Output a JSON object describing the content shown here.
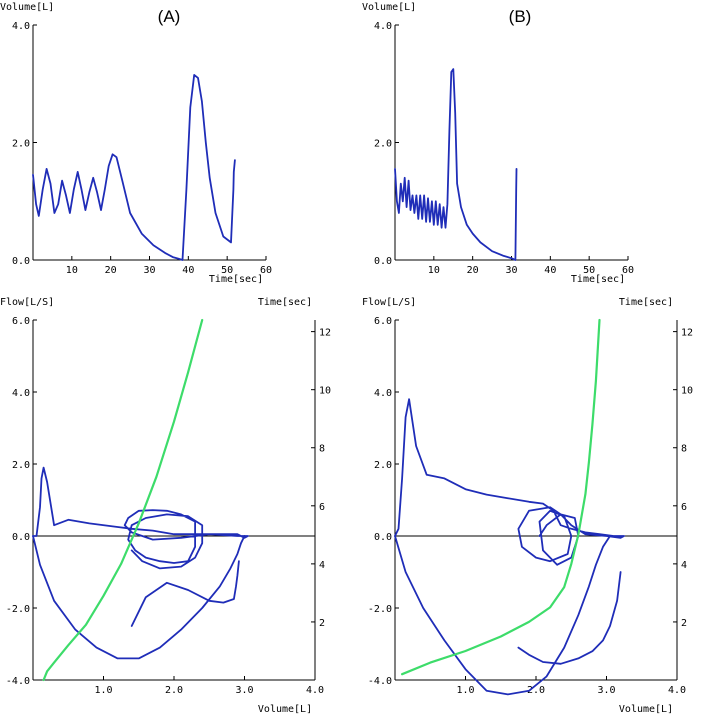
{
  "panel_labels": [
    "(A)",
    "(B)"
  ],
  "chart_data": [
    {
      "type": "line",
      "panel": "(A)",
      "xlabel": "Time[sec]",
      "ylabel": "Volume[L]",
      "xlim": [
        0,
        60
      ],
      "ylim": [
        0,
        4.0
      ],
      "xticks": [
        "10",
        "20",
        "30",
        "40",
        "50",
        "60"
      ],
      "yticks": [
        "0.0",
        "2.0",
        "4.0"
      ],
      "series": [
        {
          "color": "#1f2db8",
          "x": [
            0,
            0.8,
            1.5,
            2.5,
            3.5,
            4.5,
            5.5,
            6.5,
            7.5,
            8.5,
            9.5,
            10.5,
            11.5,
            12.5,
            13.5,
            14.5,
            15.5,
            16.5,
            17.5,
            18.5,
            19.5,
            20.5,
            21.5,
            23,
            25,
            28,
            31,
            34,
            36,
            37.5,
            38.5,
            39.5,
            40.5,
            41.5,
            42.5,
            43.5,
            44.5,
            45.5,
            47,
            49,
            51,
            51.6,
            51.7,
            52
          ],
          "y": [
            1.45,
            0.95,
            0.75,
            1.2,
            1.55,
            1.3,
            0.8,
            0.95,
            1.35,
            1.1,
            0.8,
            1.2,
            1.5,
            1.2,
            0.85,
            1.15,
            1.4,
            1.15,
            0.85,
            1.2,
            1.6,
            1.8,
            1.75,
            1.35,
            0.8,
            0.45,
            0.25,
            0.12,
            0.05,
            0.02,
            0.0,
            1.2,
            2.6,
            3.15,
            3.1,
            2.7,
            2.0,
            1.4,
            0.8,
            0.4,
            0.3,
            1.2,
            1.5,
            1.7
          ]
        }
      ]
    },
    {
      "type": "line",
      "panel": "(B)",
      "xlabel": "Time[sec]",
      "ylabel": "Volume[L]",
      "xlim": [
        0,
        60
      ],
      "ylim": [
        0,
        4.0
      ],
      "xticks": [
        "10",
        "20",
        "30",
        "40",
        "50",
        "60"
      ],
      "yticks": [
        "0.0",
        "2.0",
        "4.0"
      ],
      "series": [
        {
          "color": "#1f2db8",
          "x": [
            0,
            0.5,
            1,
            1.5,
            2,
            2.5,
            3,
            3.5,
            4,
            4.5,
            5,
            5.5,
            6,
            6.5,
            7,
            7.5,
            8,
            8.5,
            9,
            9.5,
            10,
            10.5,
            11,
            11.5,
            12,
            12.5,
            13,
            13.5,
            14,
            14.5,
            15,
            15.5,
            16,
            17,
            18.5,
            20,
            22,
            25,
            28,
            30,
            31,
            31.2,
            31.3
          ],
          "y": [
            1.55,
            1.0,
            0.8,
            1.3,
            1.0,
            1.4,
            0.9,
            1.35,
            0.85,
            1.1,
            0.8,
            1.1,
            0.7,
            1.1,
            0.7,
            1.1,
            0.65,
            1.05,
            0.65,
            1.0,
            0.6,
            1.0,
            0.6,
            0.95,
            0.55,
            0.9,
            0.55,
            0.95,
            2.2,
            3.2,
            3.25,
            2.5,
            1.3,
            0.9,
            0.6,
            0.45,
            0.3,
            0.15,
            0.07,
            0.03,
            0.0,
            1.2,
            1.55
          ]
        }
      ]
    },
    {
      "type": "line",
      "panel": "(A)",
      "xlabel": "Volume[L]",
      "ylabel": "Flow[L/S]",
      "y2label": "Time[sec]",
      "xlim": [
        0,
        4.0
      ],
      "ylim": [
        -4.0,
        6.0
      ],
      "y2lim": [
        0,
        12.4
      ],
      "xticks": [
        "1.0",
        "2.0",
        "3.0",
        "4.0"
      ],
      "yticks": [
        "-4.0",
        "-2.0",
        "0.0",
        "2.0",
        "4.0",
        "6.0"
      ],
      "y2ticks": [
        "2",
        "4",
        "6",
        "8",
        "10",
        "12"
      ],
      "series": [
        {
          "color": "#1f2db8",
          "role": "flow-volume loop",
          "x": [
            0.0,
            0.05,
            0.1,
            0.12,
            0.15,
            0.2,
            0.3,
            0.5,
            0.8,
            1.2,
            1.4,
            1.7,
            2.0,
            2.3,
            2.6,
            2.9,
            3.0,
            3.05,
            3.0,
            2.9,
            2.5,
            2.1,
            1.7,
            1.4,
            1.3,
            1.35,
            1.5,
            1.7,
            1.9,
            2.1,
            2.3,
            2.3,
            2.2,
            2.0,
            1.8,
            1.6,
            1.45,
            1.35,
            1.4,
            1.6,
            1.9,
            2.2,
            2.4,
            2.4,
            2.3,
            2.1,
            1.8,
            1.55,
            1.4
          ],
          "y": [
            0.0,
            0.0,
            0.8,
            1.6,
            1.9,
            1.5,
            0.3,
            0.45,
            0.35,
            0.25,
            0.2,
            0.15,
            0.05,
            0.05,
            0.05,
            0.05,
            -0.05,
            0.0,
            0.0,
            0.0,
            0.05,
            -0.05,
            -0.1,
            0.1,
            0.3,
            0.5,
            0.7,
            0.72,
            0.7,
            0.6,
            0.4,
            -0.3,
            -0.7,
            -0.75,
            -0.7,
            -0.6,
            -0.4,
            -0.1,
            0.3,
            0.5,
            0.6,
            0.55,
            0.3,
            -0.2,
            -0.6,
            -0.85,
            -0.9,
            -0.7,
            -0.4
          ]
        },
        {
          "color": "#1f2db8",
          "role": "expiratory branch",
          "x": [
            0.0,
            0.1,
            0.3,
            0.6,
            0.9,
            1.2,
            1.5,
            1.8,
            2.1,
            2.4,
            2.65,
            2.8,
            2.9,
            2.95,
            3.0
          ],
          "y": [
            0.0,
            -0.8,
            -1.8,
            -2.6,
            -3.1,
            -3.4,
            -3.4,
            -3.1,
            -2.6,
            -2.0,
            -1.4,
            -0.9,
            -0.5,
            -0.2,
            0.0
          ]
        },
        {
          "color": "#1f2db8",
          "role": "return segment",
          "x": [
            1.4,
            1.6,
            1.9,
            2.2,
            2.5,
            2.7,
            2.85,
            2.88,
            2.9,
            2.92
          ],
          "y": [
            -2.5,
            -1.7,
            -1.3,
            -1.5,
            -1.8,
            -1.85,
            -1.75,
            -1.4,
            -1.1,
            -0.7
          ]
        },
        {
          "color": "#3ddc6a",
          "role": "time",
          "axis": "y2",
          "x": [
            0.15,
            0.2,
            0.3,
            0.5,
            0.75,
            1.0,
            1.25,
            1.5,
            1.75,
            2.0,
            2.2,
            2.4
          ],
          "y": [
            0.0,
            0.3,
            0.6,
            1.2,
            1.9,
            2.9,
            4.0,
            5.4,
            7.0,
            8.9,
            10.6,
            12.4
          ]
        }
      ]
    },
    {
      "type": "line",
      "panel": "(B)",
      "xlabel": "Volume[L]",
      "ylabel": "Flow[L/S]",
      "y2label": "Time[sec]",
      "xlim": [
        0,
        4.0
      ],
      "ylim": [
        -4.0,
        6.0
      ],
      "y2lim": [
        0,
        12.4
      ],
      "xticks": [
        "1.0",
        "2.0",
        "3.0",
        "4.0"
      ],
      "yticks": [
        "-4.0",
        "-2.0",
        "0.0",
        "2.0",
        "4.0",
        "6.0"
      ],
      "y2ticks": [
        "2",
        "4",
        "6",
        "8",
        "10",
        "12"
      ],
      "series": [
        {
          "color": "#1f2db8",
          "role": "flow-volume loop",
          "x": [
            0.0,
            0.05,
            0.1,
            0.15,
            0.2,
            0.3,
            0.45,
            0.7,
            1.0,
            1.3,
            1.6,
            1.9,
            2.1,
            2.25,
            2.35,
            2.5,
            2.7,
            2.9,
            3.1,
            3.2,
            3.25,
            3.2,
            3.0,
            2.7,
            2.5,
            2.35,
            2.2,
            1.9,
            1.75,
            1.8,
            2.0,
            2.2,
            2.45,
            2.5,
            2.4,
            2.2,
            2.05,
            2.1,
            2.3,
            2.5,
            2.6,
            2.55,
            2.35,
            2.15,
            2.05
          ],
          "y": [
            0.0,
            0.2,
            1.6,
            3.3,
            3.8,
            2.5,
            1.7,
            1.6,
            1.3,
            1.15,
            1.05,
            0.95,
            0.9,
            0.7,
            0.3,
            0.2,
            0.1,
            0.05,
            0.0,
            0.0,
            0.0,
            -0.05,
            0.0,
            0.05,
            0.3,
            0.6,
            0.8,
            0.7,
            0.2,
            -0.3,
            -0.6,
            -0.7,
            -0.5,
            0.0,
            0.55,
            0.7,
            0.4,
            -0.4,
            -0.8,
            -0.6,
            0.0,
            0.5,
            0.6,
            0.3,
            0.0
          ]
        },
        {
          "color": "#1f2db8",
          "role": "expiratory branch",
          "x": [
            0.0,
            0.15,
            0.4,
            0.7,
            1.0,
            1.3,
            1.6,
            1.9,
            2.15,
            2.4,
            2.6,
            2.75,
            2.85,
            2.95,
            3.05
          ],
          "y": [
            0.0,
            -1.0,
            -2.0,
            -2.9,
            -3.7,
            -4.3,
            -4.4,
            -4.3,
            -3.9,
            -3.1,
            -2.2,
            -1.4,
            -0.8,
            -0.3,
            0.0
          ]
        },
        {
          "color": "#1f2db8",
          "role": "return segment",
          "x": [
            1.75,
            1.9,
            2.1,
            2.35,
            2.6,
            2.8,
            2.95,
            3.05,
            3.15,
            3.2
          ],
          "y": [
            -3.1,
            -3.3,
            -3.5,
            -3.55,
            -3.4,
            -3.2,
            -2.9,
            -2.5,
            -1.8,
            -1.0
          ]
        },
        {
          "color": "#3ddc6a",
          "role": "time",
          "axis": "y2",
          "x": [
            0.1,
            0.5,
            1.0,
            1.5,
            1.9,
            2.2,
            2.4,
            2.5,
            2.6,
            2.7,
            2.75,
            2.8,
            2.85,
            2.9
          ],
          "y": [
            0.2,
            0.6,
            1.0,
            1.5,
            2.0,
            2.5,
            3.2,
            4.0,
            5.0,
            6.4,
            7.5,
            8.8,
            10.3,
            12.4
          ]
        }
      ]
    }
  ]
}
